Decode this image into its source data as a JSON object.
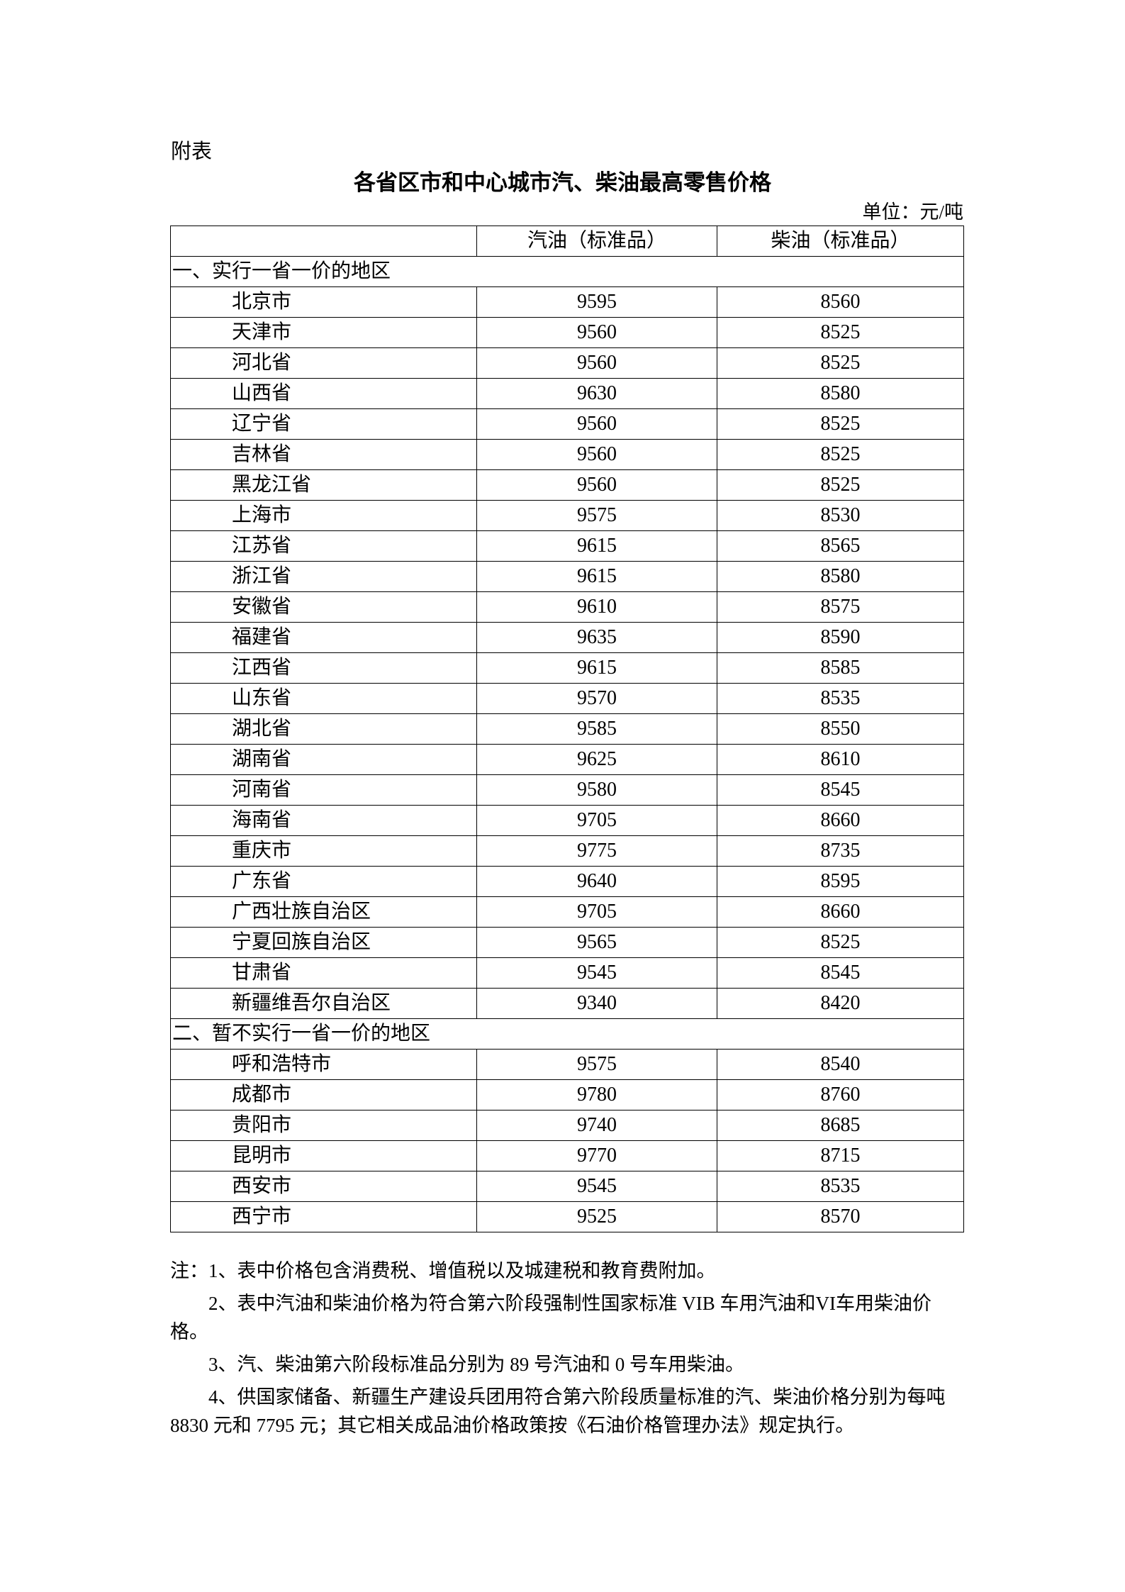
{
  "attachment_label": "附表",
  "title": "各省区市和中心城市汽、柴油最高零售价格",
  "unit": "单位：元/吨",
  "table": {
    "headers": [
      "",
      "汽油（标准品）",
      "柴油（标准品）"
    ],
    "sections": [
      {
        "label": "一、实行一省一价的地区",
        "rows": [
          [
            "北京市",
            "9595",
            "8560"
          ],
          [
            "天津市",
            "9560",
            "8525"
          ],
          [
            "河北省",
            "9560",
            "8525"
          ],
          [
            "山西省",
            "9630",
            "8580"
          ],
          [
            "辽宁省",
            "9560",
            "8525"
          ],
          [
            "吉林省",
            "9560",
            "8525"
          ],
          [
            "黑龙江省",
            "9560",
            "8525"
          ],
          [
            "上海市",
            "9575",
            "8530"
          ],
          [
            "江苏省",
            "9615",
            "8565"
          ],
          [
            "浙江省",
            "9615",
            "8580"
          ],
          [
            "安徽省",
            "9610",
            "8575"
          ],
          [
            "福建省",
            "9635",
            "8590"
          ],
          [
            "江西省",
            "9615",
            "8585"
          ],
          [
            "山东省",
            "9570",
            "8535"
          ],
          [
            "湖北省",
            "9585",
            "8550"
          ],
          [
            "湖南省",
            "9625",
            "8610"
          ],
          [
            "河南省",
            "9580",
            "8545"
          ],
          [
            "海南省",
            "9705",
            "8660"
          ],
          [
            "重庆市",
            "9775",
            "8735"
          ],
          [
            "广东省",
            "9640",
            "8595"
          ],
          [
            "广西壮族自治区",
            "9705",
            "8660"
          ],
          [
            "宁夏回族自治区",
            "9565",
            "8525"
          ],
          [
            "甘肃省",
            "9545",
            "8545"
          ],
          [
            "新疆维吾尔自治区",
            "9340",
            "8420"
          ]
        ]
      },
      {
        "label": "二、暂不实行一省一价的地区",
        "rows": [
          [
            "呼和浩特市",
            "9575",
            "8540"
          ],
          [
            "成都市",
            "9780",
            "8760"
          ],
          [
            "贵阳市",
            "9740",
            "8685"
          ],
          [
            "昆明市",
            "9770",
            "8715"
          ],
          [
            "西安市",
            "9545",
            "8535"
          ],
          [
            "西宁市",
            "9525",
            "8570"
          ]
        ]
      }
    ]
  },
  "notes": [
    "注：1、表中价格包含消费税、增值税以及城建税和教育费附加。",
    "2、表中汽油和柴油价格为符合第六阶段强制性国家标准 VIB 车用汽油和VI车用柴油价格。",
    "3、汽、柴油第六阶段标准品分别为 89 号汽油和 0 号车用柴油。",
    "4、供国家储备、新疆生产建设兵团用符合第六阶段质量标准的汽、柴油价格分别为每吨 8830 元和 7795 元；其它相关成品油价格政策按《石油价格管理办法》规定执行。"
  ]
}
